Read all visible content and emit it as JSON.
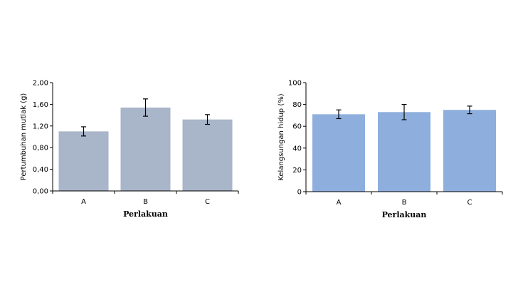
{
  "chart_data": [
    {
      "type": "bar",
      "title": "",
      "categories": [
        "A",
        "B",
        "C"
      ],
      "values": [
        1.1,
        1.54,
        1.32
      ],
      "errors": [
        0.085,
        0.16,
        0.09
      ],
      "xlabel": "Perlakuan",
      "ylabel": "Pertumbuhan mutlak (g)",
      "ylim": [
        0,
        2.0
      ],
      "yticks": [
        "0,00",
        "0,40",
        "0,80",
        "1,20",
        "1,60",
        "2,00"
      ],
      "color": "#a9b5c9",
      "grid": false
    },
    {
      "type": "bar",
      "title": "",
      "categories": [
        "A",
        "B",
        "C"
      ],
      "values": [
        71,
        73,
        75
      ],
      "errors": [
        4,
        7,
        3.5
      ],
      "xlabel": "Perlakuan",
      "ylabel": "Kelangsungan hidup (%)",
      "ylim": [
        0,
        100
      ],
      "yticks": [
        "0",
        "20",
        "40",
        "60",
        "80",
        "100"
      ],
      "color": "#8eaedd",
      "grid": false
    }
  ]
}
